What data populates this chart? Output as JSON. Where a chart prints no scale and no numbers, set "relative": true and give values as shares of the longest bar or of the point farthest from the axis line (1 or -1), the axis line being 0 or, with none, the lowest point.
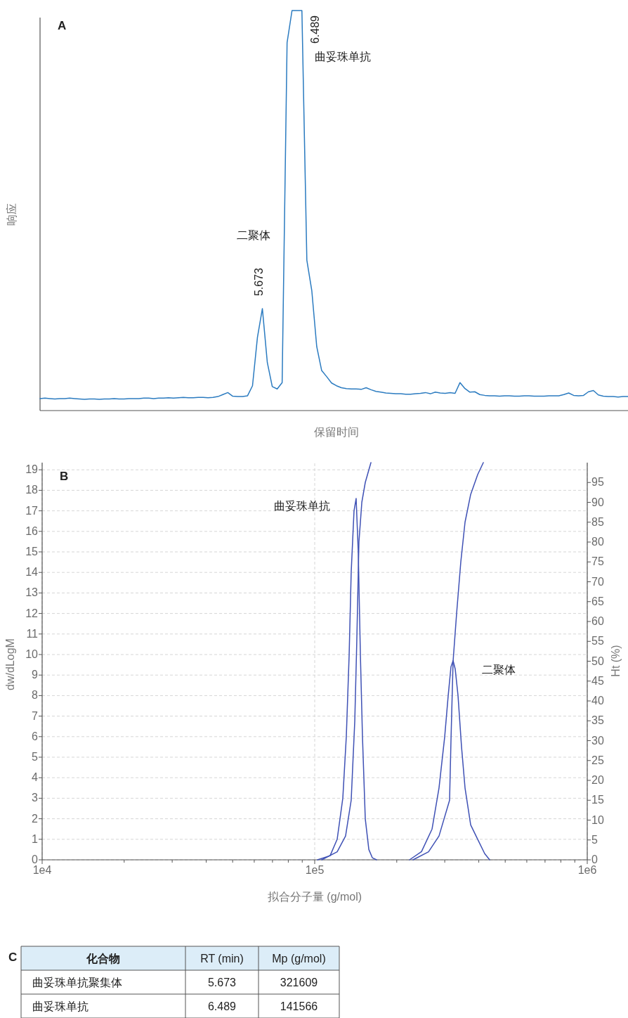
{
  "chart_data": [
    {
      "type": "line",
      "title": "A",
      "xlabel": "保留时间",
      "ylabel": "响应",
      "relative": true,
      "color": "#2b7bc0",
      "annotations": [
        "二聚体",
        "5.673",
        "6.489",
        "曲妥珠单抗"
      ],
      "categories": [
        null,
        null,
        null,
        null,
        null,
        null,
        null,
        null,
        null,
        null,
        null,
        null,
        null,
        null,
        null,
        null,
        null,
        null,
        null,
        null,
        null,
        null,
        null,
        null,
        null,
        null,
        null,
        null,
        null,
        null,
        null,
        null,
        null,
        null,
        null,
        null,
        null,
        null,
        null,
        null,
        null,
        null,
        null,
        null,
        null,
        null,
        null,
        null,
        null,
        null,
        null,
        null,
        null,
        null,
        null,
        null,
        null,
        null,
        null,
        null,
        null,
        null,
        null,
        null,
        null,
        null,
        null,
        null,
        null,
        null,
        null,
        null,
        null,
        null,
        null,
        null,
        null,
        null,
        null,
        null,
        null,
        null,
        null,
        null,
        null,
        null,
        null,
        null,
        null,
        null,
        null,
        null,
        null,
        null,
        null,
        null,
        null,
        null,
        null,
        null,
        null,
        null,
        null,
        null,
        null,
        null,
        null,
        null,
        null,
        null,
        null,
        null,
        null,
        null,
        null,
        null,
        null,
        null,
        null,
        null
      ],
      "values": [
        0.03,
        0.031,
        0.03,
        0.029,
        0.03,
        0.03,
        0.031,
        0.03,
        0.029,
        0.028,
        0.029,
        0.029,
        0.028,
        0.029,
        0.029,
        0.03,
        0.029,
        0.029,
        0.03,
        0.03,
        0.03,
        0.031,
        0.031,
        0.03,
        0.031,
        0.031,
        0.032,
        0.031,
        0.032,
        0.033,
        0.032,
        0.032,
        0.033,
        0.033,
        0.032,
        0.033,
        0.035,
        0.04,
        0.045,
        0.036,
        0.035,
        0.035,
        0.037,
        0.062,
        0.183,
        0.255,
        0.12,
        0.06,
        0.054,
        0.07,
        0.92,
        1,
        1,
        1,
        0.376,
        0.3,
        0.16,
        0.1,
        0.085,
        0.069,
        0.062,
        0.057,
        0.055,
        0.054,
        0.054,
        0.053,
        0.057,
        0.052,
        0.048,
        0.046,
        0.044,
        0.043,
        0.042,
        0.042,
        0.041,
        0.041,
        0.042,
        0.043,
        0.045,
        0.042,
        0.046,
        0.044,
        0.043,
        0.045,
        0.043,
        0.07,
        0.055,
        0.046,
        0.047,
        0.04,
        0.038,
        0.037,
        0.037,
        0.036,
        0.037,
        0.037,
        0.036,
        0.036,
        0.037,
        0.037,
        0.036,
        0.036,
        0.036,
        0.037,
        0.037,
        0.037,
        0.04,
        0.044,
        0.038,
        0.037,
        0.038,
        0.047,
        0.05,
        0.039,
        0.036,
        0.035,
        0.035,
        0.034,
        0.035,
        0.035
      ]
    },
    {
      "type": "line",
      "title": "B",
      "xlabel": "拟合分子量 (g/mol)",
      "ylabel": "dw/dLogM",
      "y2label": "Ht (%)",
      "log": "x",
      "grid": true,
      "annotations": [
        "曲妥珠单抗",
        "二聚体"
      ],
      "xlim": [
        10000,
        1000000
      ],
      "ylim": [
        0,
        19.35
      ],
      "y2lim": [
        0,
        100
      ],
      "xticks": [
        {
          "value": 10000,
          "label": "1e4"
        },
        {
          "value": 20000,
          "label": null
        },
        {
          "value": 30000,
          "label": null
        },
        {
          "value": 40000,
          "label": null
        },
        {
          "value": 50000,
          "label": null
        },
        {
          "value": 60000,
          "label": null
        },
        {
          "value": 70000,
          "label": null
        },
        {
          "value": 80000,
          "label": null
        },
        {
          "value": 90000,
          "label": null
        },
        {
          "value": 100000,
          "label": "1e5"
        },
        {
          "value": 200000,
          "label": null
        },
        {
          "value": 300000,
          "label": null
        },
        {
          "value": 400000,
          "label": null
        },
        {
          "value": 500000,
          "label": null
        },
        {
          "value": 600000,
          "label": null
        },
        {
          "value": 700000,
          "label": null
        },
        {
          "value": 800000,
          "label": null
        },
        {
          "value": 900000,
          "label": null
        },
        {
          "value": 1000000,
          "label": "1e6"
        }
      ],
      "yticks": [
        0,
        1,
        2,
        3,
        4,
        5,
        6,
        7,
        8,
        9,
        10,
        11,
        12,
        13,
        14,
        15,
        16,
        17,
        18,
        19
      ],
      "y2ticks": [
        0,
        5,
        10,
        15,
        20,
        25,
        30,
        35,
        40,
        45,
        50,
        55,
        60,
        65,
        70,
        75,
        80,
        85,
        90,
        95
      ],
      "series": [
        {
          "color": "#3f51b5",
          "x": [
            102400,
            113900,
            120900,
            126800,
            130600,
            133800,
            136100,
            139400,
            141900,
            144500,
            147100,
            149700,
            153300,
            158000,
            162700,
            168600
          ],
          "values": [
            0,
            0.2,
            1.0,
            3,
            6,
            10,
            14,
            17,
            17.6,
            15,
            10,
            6,
            2,
            0.5,
            0.1,
            0
          ]
        },
        {
          "color": "#3f51b5",
          "axis": "y2",
          "x": [
            106100,
            120900,
            129800,
            136100,
            140300,
            142700,
            145300,
            148900,
            153300,
            160800
          ],
          "values": [
            0,
            2,
            6,
            15,
            35,
            55,
            80,
            90,
            95,
            100
          ]
        },
        {
          "color": "#3f51b5",
          "x": [
            222800,
            246500,
            269500,
            285800,
            299900,
            308900,
            316200,
            321900,
            327700,
            335600,
            345700,
            356100,
            373500,
            396300,
            420500,
            438500
          ],
          "values": [
            0,
            0.4,
            1.5,
            3.5,
            6,
            8,
            9.4,
            9.7,
            9.3,
            8,
            5.5,
            3.5,
            1.7,
            1.0,
            0.3,
            0
          ]
        },
        {
          "color": "#3f51b5",
          "axis": "y2",
          "x": [
            229500,
            261600,
            285800,
            312500,
            316200,
            321900,
            331600,
            343600,
            356100,
            373500,
            396300,
            415600
          ],
          "values": [
            0,
            2,
            6,
            15,
            30,
            50,
            62,
            75,
            85,
            92,
            97,
            100
          ]
        }
      ]
    },
    {
      "type": "other",
      "title": "C",
      "categories": [
        "化合物",
        "RT (min)",
        "Mp (g/mol)"
      ],
      "y_categories": [
        "曲妥珠单抗聚集体",
        "曲妥珠单抗"
      ],
      "cell_labels": [
        [
          "5.673",
          "321609"
        ],
        [
          "6.489",
          "141566"
        ]
      ]
    }
  ]
}
